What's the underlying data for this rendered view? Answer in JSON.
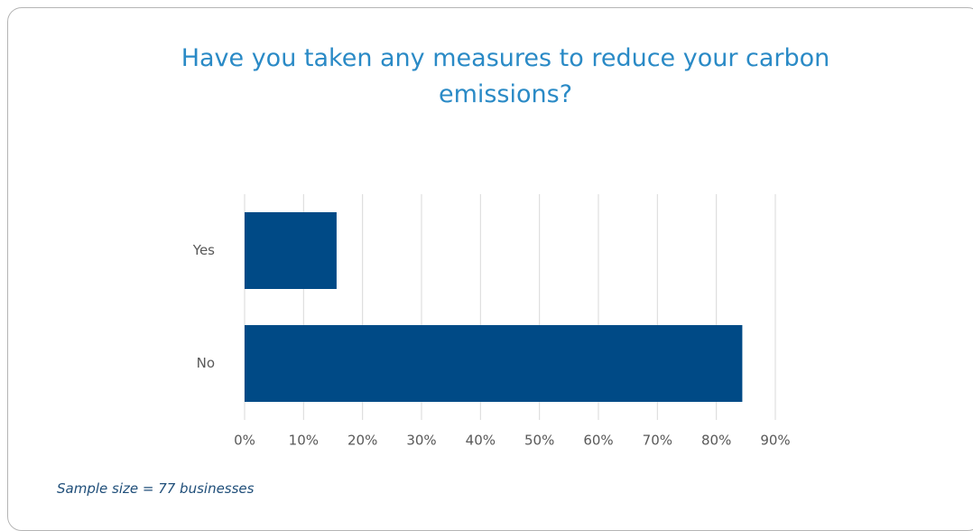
{
  "chart_data": {
    "type": "bar",
    "orientation": "horizontal",
    "title": "Have you taken any measures to reduce your carbon emissions?",
    "categories": [
      "Yes",
      "No"
    ],
    "values": [
      15.6,
      84.4
    ],
    "color": "#004a86",
    "xlim": [
      0,
      90
    ],
    "xticks": [
      {
        "value": 0,
        "label": "0%"
      },
      {
        "value": 10,
        "label": "10%"
      },
      {
        "value": 20,
        "label": "20%"
      },
      {
        "value": 30,
        "label": "30%"
      },
      {
        "value": 40,
        "label": "40%"
      },
      {
        "value": 50,
        "label": "50%"
      },
      {
        "value": 60,
        "label": "60%"
      },
      {
        "value": 70,
        "label": "70%"
      },
      {
        "value": 80,
        "label": "80%"
      },
      {
        "value": 90,
        "label": "90%"
      }
    ],
    "grid": true,
    "note": "Sample size = 77 businesses"
  }
}
